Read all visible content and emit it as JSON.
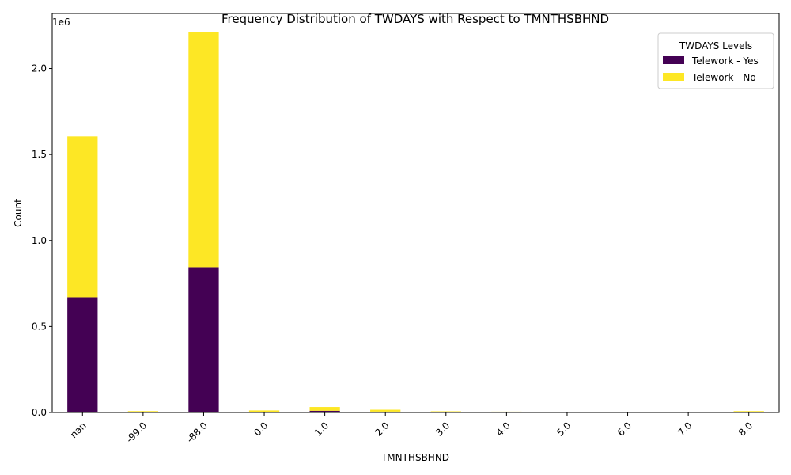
{
  "chart_data": {
    "type": "bar",
    "stacked": true,
    "title": "Frequency Distribution of TWDAYS with Respect to TMNTHSBHND",
    "xlabel": "TMNTHSBHND",
    "ylabel": "Count",
    "offset_text": "1e6",
    "categories": [
      "nan",
      "-99.0",
      "-88.0",
      "0.0",
      "1.0",
      "2.0",
      "3.0",
      "4.0",
      "5.0",
      "6.0",
      "7.0",
      "8.0"
    ],
    "series": [
      {
        "name": "Telework - Yes",
        "color": "#440154",
        "values": [
          670000,
          3000,
          845000,
          4000,
          10000,
          5000,
          2500,
          3500,
          3000,
          3500,
          1000,
          4000
        ]
      },
      {
        "name": "Telework - No",
        "color": "#fde725",
        "values": [
          935000,
          5000,
          1365000,
          8000,
          22000,
          11000,
          4500,
          1500,
          1500,
          1000,
          2000,
          4000
        ]
      }
    ],
    "ylim": [
      0,
      2320000
    ],
    "yticks": [
      {
        "value": 0,
        "label": "0.0"
      },
      {
        "value": 500000,
        "label": "0.5"
      },
      {
        "value": 1000000,
        "label": "1.0"
      },
      {
        "value": 1500000,
        "label": "1.5"
      },
      {
        "value": 2000000,
        "label": "2.0"
      }
    ],
    "legend": {
      "title": "TWDAYS Levels",
      "position": "top-right"
    },
    "grid": false
  }
}
